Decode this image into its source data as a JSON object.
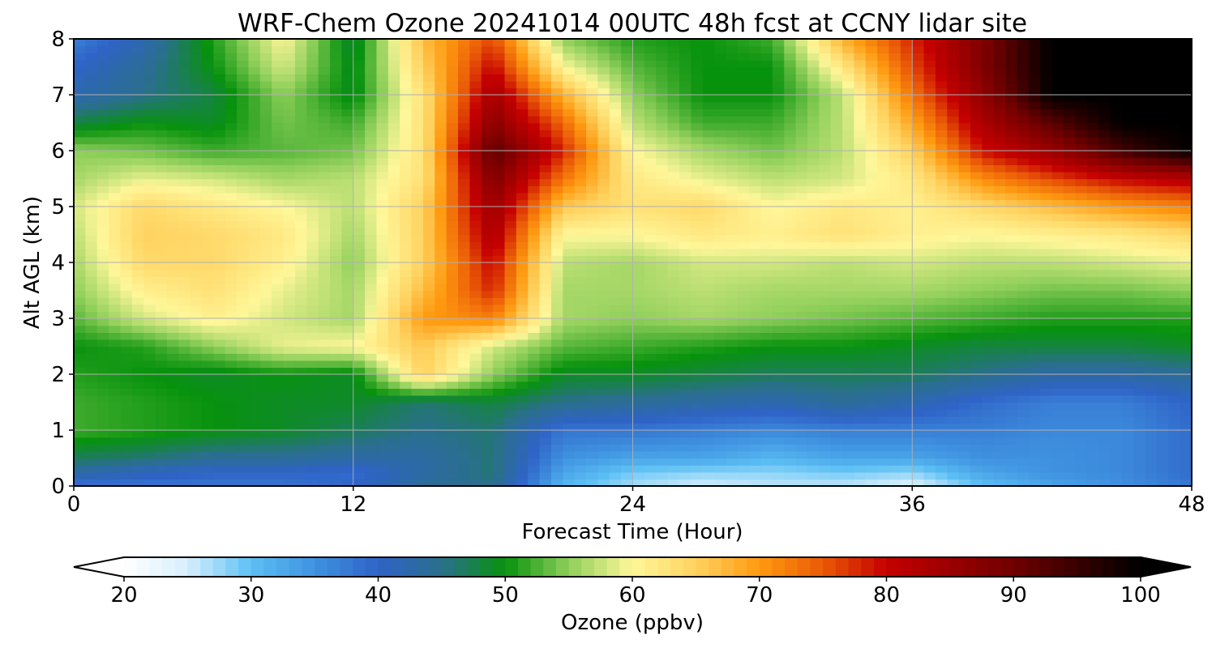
{
  "chart_data": {
    "type": "heatmap",
    "title": "WRF-Chem Ozone  20241014 00UTC 48h fcst at CCNY lidar site",
    "xlabel": "Forecast Time (Hour)",
    "ylabel": "Alt AGL (km)",
    "xlim": [
      0,
      48
    ],
    "ylim": [
      0,
      8
    ],
    "xticks": [
      0,
      12,
      24,
      36,
      48
    ],
    "yticks": [
      0,
      1,
      2,
      3,
      4,
      5,
      6,
      7,
      8
    ],
    "grid": true,
    "x": [
      0,
      3,
      6,
      9,
      12,
      15,
      18,
      21,
      24,
      27,
      30,
      33,
      36,
      39,
      42,
      45,
      48
    ],
    "y": [
      0,
      0.25,
      0.5,
      1,
      1.5,
      2,
      2.5,
      3,
      3.5,
      4,
      4.5,
      5,
      5.5,
      6,
      6.5,
      7,
      7.5,
      8
    ],
    "z": [
      [
        38,
        38,
        38,
        38,
        40,
        44,
        45,
        31,
        27,
        25,
        26,
        26,
        24,
        30,
        33,
        35,
        38
      ],
      [
        43,
        41,
        40,
        40,
        39,
        43,
        46,
        33,
        29,
        28,
        28,
        29,
        28,
        33,
        35,
        36,
        39
      ],
      [
        47,
        46,
        44,
        44,
        43,
        43,
        46,
        35,
        33,
        33,
        31,
        33,
        33,
        35,
        35,
        36,
        39
      ],
      [
        52,
        51,
        50,
        49,
        47,
        45,
        46,
        38,
        38,
        37,
        36,
        37,
        37,
        37,
        36,
        36,
        39
      ],
      [
        52,
        51,
        50,
        49,
        49,
        46,
        48,
        45,
        44,
        43,
        42,
        44,
        42,
        39,
        37,
        37,
        40
      ],
      [
        51,
        50,
        49,
        50,
        49,
        65,
        55,
        49,
        49,
        48,
        47,
        47,
        47,
        45,
        43,
        43,
        44
      ],
      [
        50,
        51,
        55,
        59,
        60,
        66,
        58,
        53,
        52,
        51,
        50,
        50,
        49,
        48,
        48,
        48,
        49
      ],
      [
        53,
        58,
        61,
        58,
        56,
        70,
        72,
        56,
        55,
        56,
        55,
        54,
        53,
        52,
        51,
        51,
        51
      ],
      [
        55,
        61,
        63,
        59,
        56,
        67,
        78,
        56,
        56,
        57,
        56,
        56,
        56,
        55,
        54,
        54,
        55
      ],
      [
        56,
        64,
        64,
        61,
        55,
        65,
        80,
        57,
        56,
        58,
        58,
        57,
        58,
        57,
        57,
        58,
        59
      ],
      [
        57,
        65,
        64,
        62,
        56,
        65,
        83,
        60,
        60,
        62,
        61,
        63,
        61,
        60,
        61,
        62,
        64
      ],
      [
        58,
        64,
        62,
        60,
        57,
        65,
        85,
        66,
        63,
        64,
        60,
        62,
        61,
        64,
        67,
        70,
        72
      ],
      [
        56,
        59,
        58,
        56,
        57,
        63,
        88,
        73,
        62,
        59,
        57,
        58,
        62,
        71,
        76,
        80,
        82
      ],
      [
        55,
        54,
        52,
        53,
        54,
        63,
        92,
        78,
        60,
        56,
        54,
        57,
        65,
        79,
        85,
        94,
        100
      ],
      [
        48,
        50,
        49,
        54,
        52,
        63,
        87,
        74,
        57,
        52,
        52,
        57,
        69,
        83,
        92,
        100,
        100
      ],
      [
        42,
        45,
        48,
        55,
        49,
        63,
        84,
        68,
        55,
        50,
        50,
        57,
        73,
        86,
        100,
        100,
        100
      ],
      [
        40,
        44,
        50,
        58,
        49,
        65,
        80,
        60,
        53,
        50,
        50,
        62,
        76,
        88,
        100,
        100,
        100
      ],
      [
        37,
        42,
        51,
        60,
        48,
        67,
        76,
        55,
        51,
        50,
        52,
        68,
        78,
        88,
        100,
        100,
        100
      ]
    ],
    "colorbar": {
      "label": "Ozone  (ppbv)",
      "min": 20,
      "max": 100,
      "ticks": [
        20,
        30,
        40,
        50,
        60,
        70,
        80,
        90,
        100
      ],
      "extend": "both",
      "colormap": [
        [
          20,
          "#ffffff"
        ],
        [
          25,
          "#d6effd"
        ],
        [
          30,
          "#5cc0f4"
        ],
        [
          35,
          "#3f92e0"
        ],
        [
          40,
          "#2f63c7"
        ],
        [
          45,
          "#2a6f8c"
        ],
        [
          50,
          "#07920d"
        ],
        [
          55,
          "#8fcf5a"
        ],
        [
          60,
          "#fff79a"
        ],
        [
          65,
          "#ffd25f"
        ],
        [
          70,
          "#ff9a10"
        ],
        [
          75,
          "#ea5a07"
        ],
        [
          80,
          "#c50000"
        ],
        [
          90,
          "#700000"
        ],
        [
          100,
          "#000000"
        ]
      ]
    }
  }
}
